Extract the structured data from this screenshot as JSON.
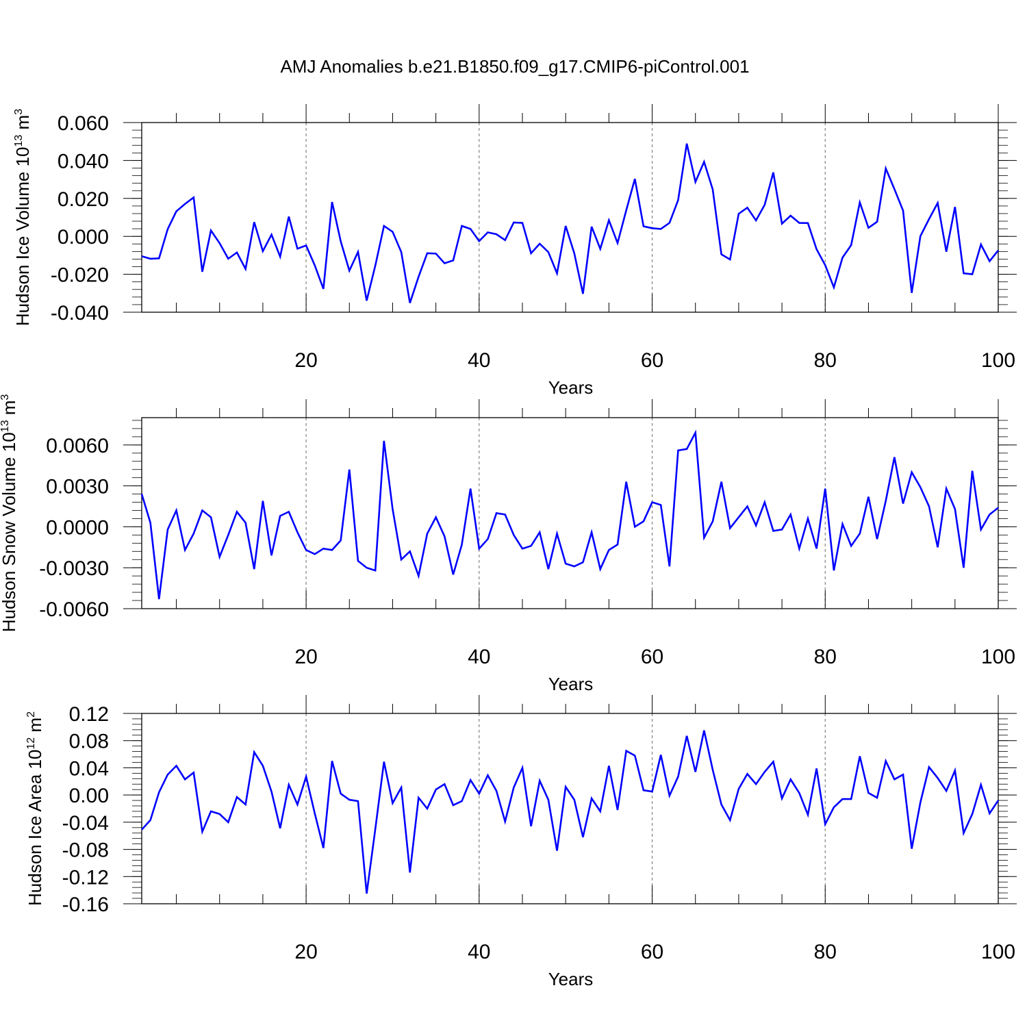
{
  "title": "AMJ Anomalies b.e21.B1850.f09_g17.CMIP6-piControl.001",
  "colors": {
    "line": "#0000ff",
    "axis": "#000000",
    "grid": "#808080"
  },
  "chart_data": [
    {
      "type": "line",
      "ylabel": {
        "main": "Hudson Ice Volume 10",
        "exponent": "13",
        "unit": " m",
        "unit_exponent": "3"
      },
      "xlabel": "Years",
      "xlim": [
        1,
        100
      ],
      "ylim": [
        -0.04,
        0.06
      ],
      "xticks": [
        20,
        40,
        60,
        80,
        100
      ],
      "xtick_labels": [
        "20",
        "40",
        "60",
        "80",
        "100"
      ],
      "yticks": [
        -0.04,
        -0.02,
        0,
        0.02,
        0.04,
        0.06
      ],
      "ytick_labels": [
        "-0.040",
        "-0.020",
        "0.000",
        "0.020",
        "0.040",
        "0.060"
      ],
      "grid_x": [
        20,
        40,
        60,
        80
      ],
      "series": [
        {
          "x_start": 1,
          "values": [
            -0.0105,
            -0.0118,
            -0.0116,
            0.0038,
            0.0132,
            0.0171,
            0.0205,
            -0.0187,
            0.0031,
            -0.0036,
            -0.0118,
            -0.0085,
            -0.0172,
            0.0075,
            -0.0078,
            0.0009,
            -0.0107,
            0.0104,
            -0.0065,
            -0.0048,
            -0.0153,
            -0.0277,
            0.0181,
            -0.0026,
            -0.0181,
            -0.0082,
            -0.0339,
            -0.0154,
            0.0055,
            0.0024,
            -0.0083,
            -0.0351,
            -0.0213,
            -0.0089,
            -0.0091,
            -0.0142,
            -0.0127,
            0.0055,
            0.0039,
            -0.0025,
            0.0021,
            0.0011,
            -0.002,
            0.0073,
            0.0071,
            -0.0089,
            -0.0039,
            -0.0083,
            -0.0195,
            0.0055,
            -0.009,
            -0.0303,
            0.0051,
            -0.0066,
            0.0085,
            -0.0035,
            0.0137,
            0.0303,
            0.0053,
            0.0043,
            0.0039,
            0.0071,
            0.0191,
            0.0489,
            0.0287,
            0.0393,
            0.0247,
            -0.0095,
            -0.0122,
            0.0119,
            0.0151,
            0.0084,
            0.0166,
            0.0337,
            0.0067,
            0.0109,
            0.0071,
            0.007,
            -0.0068,
            -0.0152,
            -0.0269,
            -0.0112,
            -0.0046,
            0.0179,
            0.0045,
            0.0077,
            0.0358,
            0.0249,
            0.0136,
            -0.0298,
            0.0001,
            0.0091,
            0.0176,
            -0.0081,
            0.0155,
            -0.0195,
            -0.02,
            -0.0043,
            -0.0131,
            -0.0074
          ]
        }
      ]
    },
    {
      "type": "line",
      "ylabel": {
        "main": "Hudson Snow Volume 10",
        "exponent": "13",
        "unit": " m",
        "unit_exponent": "3"
      },
      "xlabel": "Years",
      "xlim": [
        1,
        100
      ],
      "ylim": [
        -0.006,
        0.008
      ],
      "xticks": [
        20,
        40,
        60,
        80,
        100
      ],
      "xtick_labels": [
        "20",
        "40",
        "60",
        "80",
        "100"
      ],
      "yticks": [
        -0.006,
        -0.003,
        0,
        0.003,
        0.006
      ],
      "ytick_labels": [
        "-0.0060",
        "-0.0030",
        "0.0000",
        "0.0030",
        "0.0060"
      ],
      "grid_x": [
        20,
        40,
        60,
        80
      ],
      "series": [
        {
          "x_start": 1,
          "values": [
            0.0024,
            0.0003,
            -0.0053,
            -0.0002,
            0.0012,
            -0.0017,
            -0.0005,
            0.0012,
            0.0007,
            -0.0022,
            -0.0006,
            0.0011,
            0.0003,
            -0.0031,
            0.0019,
            -0.0021,
            0.0008,
            0.0011,
            -0.0004,
            -0.0017,
            -0.002,
            -0.0016,
            -0.0017,
            -0.001,
            0.0042,
            -0.0025,
            -0.003,
            -0.0032,
            0.0063,
            0.0013,
            -0.0024,
            -0.0018,
            -0.0036,
            -0.0005,
            0.0007,
            -0.0007,
            -0.0035,
            -0.0013,
            0.0028,
            -0.0016,
            -0.0009,
            0.001,
            0.0009,
            -0.0006,
            -0.0016,
            -0.0014,
            -0.0004,
            -0.0031,
            -0.0005,
            -0.0027,
            -0.0029,
            -0.0026,
            -0.0004,
            -0.0031,
            -0.0017,
            -0.0013,
            0.0033,
            0.0,
            0.0004,
            0.0018,
            0.0016,
            -0.0029,
            0.0056,
            0.0057,
            0.0069,
            -0.0008,
            0.0004,
            0.0033,
            -0.0001,
            0.0007,
            0.0015,
            0.0001,
            0.0018,
            -0.0003,
            -0.0002,
            0.0009,
            -0.0016,
            0.0006,
            -0.0016,
            0.0028,
            -0.0032,
            0.0002,
            -0.0014,
            -0.0005,
            0.0022,
            -0.0009,
            0.0019,
            0.0051,
            0.0017,
            0.004,
            0.0029,
            0.0015,
            -0.0015,
            0.0028,
            0.0013,
            -0.003,
            0.0041,
            -0.0002,
            0.0009,
            0.0014
          ]
        }
      ]
    },
    {
      "type": "line",
      "ylabel": {
        "main": "Hudson Ice Area 10",
        "exponent": "12",
        "unit": " m",
        "unit_exponent": "2"
      },
      "xlabel": "Years",
      "xlim": [
        1,
        100
      ],
      "ylim": [
        -0.16,
        0.12
      ],
      "xticks": [
        20,
        40,
        60,
        80,
        100
      ],
      "xtick_labels": [
        "20",
        "40",
        "60",
        "80",
        "100"
      ],
      "yticks": [
        -0.16,
        -0.12,
        -0.08,
        -0.04,
        0,
        0.04,
        0.08,
        0.12
      ],
      "ytick_labels": [
        "-0.16",
        "-0.12",
        "-0.08",
        "-0.04",
        "0.00",
        "0.04",
        "0.08",
        "0.12"
      ],
      "grid_x": [
        20,
        40,
        60,
        80
      ],
      "series": [
        {
          "x_start": 1,
          "values": [
            -0.051,
            -0.037,
            0.004,
            0.03,
            0.043,
            0.023,
            0.033,
            -0.054,
            -0.024,
            -0.028,
            -0.04,
            -0.003,
            -0.014,
            0.063,
            0.043,
            0.005,
            -0.049,
            0.015,
            -0.014,
            0.027,
            -0.027,
            -0.078,
            0.05,
            0.002,
            -0.007,
            -0.009,
            -0.145,
            -0.05,
            0.049,
            -0.012,
            0.011,
            -0.114,
            -0.004,
            -0.02,
            0.008,
            0.016,
            -0.015,
            -0.009,
            0.022,
            0.002,
            0.029,
            0.006,
            -0.039,
            0.011,
            0.04,
            -0.046,
            0.021,
            -0.007,
            -0.082,
            0.012,
            -0.007,
            -0.062,
            -0.005,
            -0.024,
            0.043,
            -0.022,
            0.065,
            0.058,
            0.007,
            0.005,
            0.059,
            -0.001,
            0.027,
            0.087,
            0.034,
            0.095,
            0.037,
            -0.014,
            -0.037,
            0.009,
            0.031,
            0.016,
            0.034,
            0.049,
            -0.005,
            0.023,
            0.003,
            -0.029,
            0.039,
            -0.043,
            -0.018,
            -0.006,
            -0.006,
            0.057,
            0.003,
            -0.004,
            0.05,
            0.023,
            0.03,
            -0.079,
            -0.011,
            0.041,
            0.025,
            0.006,
            0.036,
            -0.056,
            -0.028,
            0.015,
            -0.027,
            -0.008
          ]
        }
      ]
    }
  ]
}
